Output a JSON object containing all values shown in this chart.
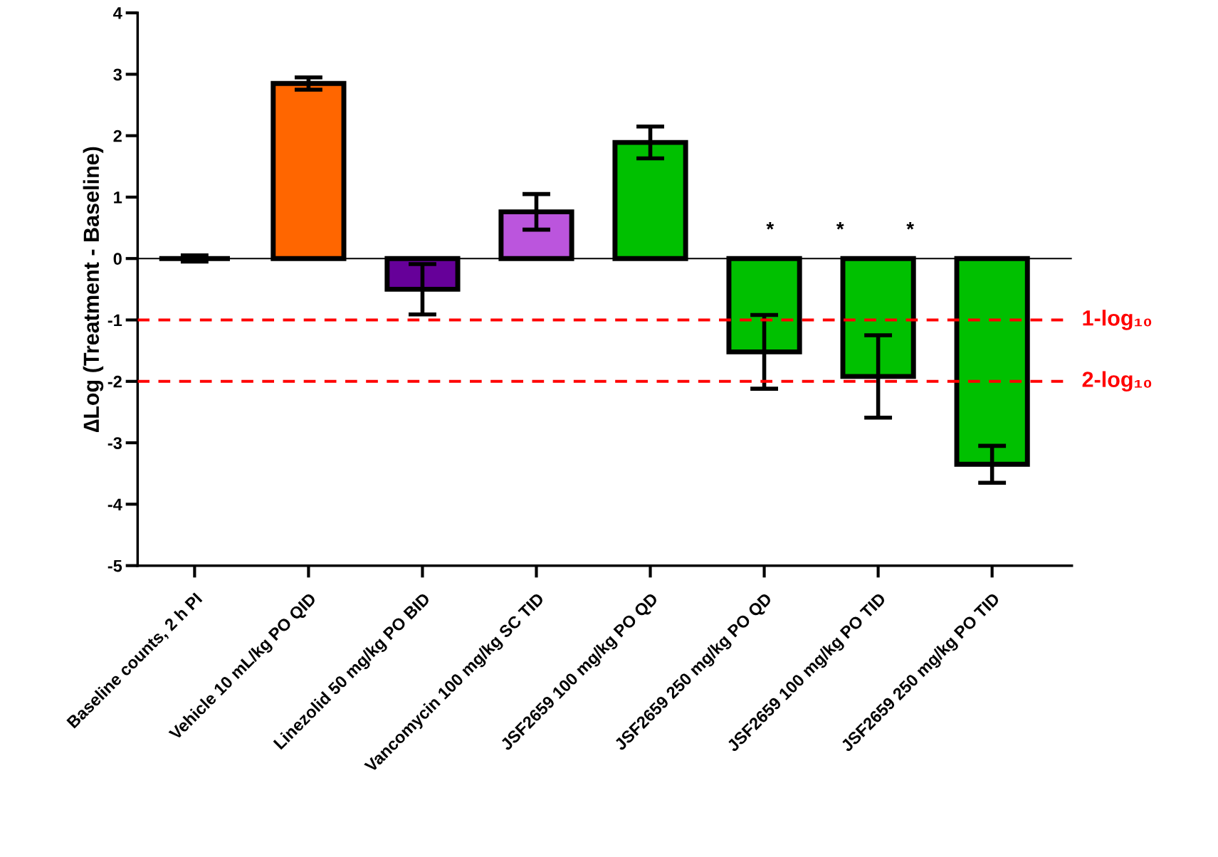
{
  "chart_data": {
    "type": "bar",
    "ylabel": "∆Log (Treatment - Baseline)",
    "categories": [
      "Baseline counts, 2 h PI",
      "Vehicle 10 mL/kg PO QID",
      "Linezolid 50 mg/kg PO BID",
      "Vancomycin 100 mg/kg SC TID",
      "JSF2659 100 mg/kg PO QD",
      "JSF2659 250 mg/kg PO QD",
      "JSF2659 100 mg/kg PO TID",
      "JSF2659 250 mg/kg PO TID"
    ],
    "values": [
      0.0,
      2.85,
      -0.5,
      0.76,
      1.89,
      -1.52,
      -1.92,
      -3.35
    ],
    "errors": [
      0.05,
      0.1,
      0.41,
      0.29,
      0.26,
      0.6,
      0.67,
      0.3
    ],
    "colors": [
      "#000000",
      "#ff6600",
      "#660099",
      "#bb55dd",
      "#00c000",
      "#00c000",
      "#00c000",
      "#00c000"
    ],
    "ylim": [
      -5,
      4
    ],
    "yticks": [
      -5,
      -4,
      -3,
      -2,
      -1,
      0,
      1,
      2,
      3,
      4
    ],
    "ref_lines": [
      {
        "axis": "y",
        "value": -1,
        "label": "1-log₁₀",
        "color": "#ff0000",
        "line_style": "dashed"
      },
      {
        "axis": "y",
        "value": -2,
        "label": "2-log₁₀",
        "color": "#ff0000",
        "line_style": "dashed"
      }
    ],
    "annotations": [
      "*",
      "*",
      "*"
    ],
    "grid": false,
    "legend": false
  }
}
